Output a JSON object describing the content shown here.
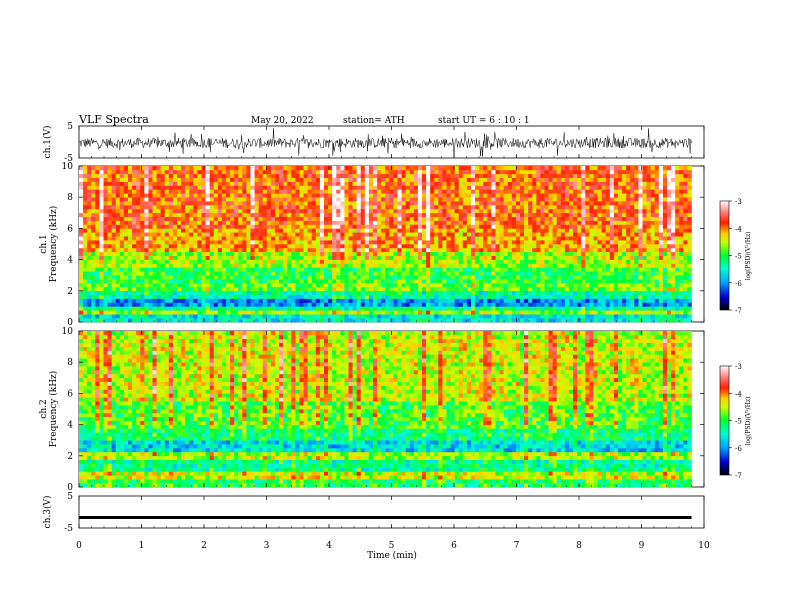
{
  "header": {
    "title": "VLF  Spectra",
    "date": "May 20, 2022",
    "station": "station= ATH",
    "start": "start  UT  =   6  : 10 : 1"
  },
  "chart_data": [
    {
      "type": "line",
      "panel": "ch1-waveform",
      "ylabel": "ch.1(V)",
      "y_ticks": [
        "5",
        "-5"
      ],
      "ylim": [
        -5,
        5
      ],
      "x_range": [
        0,
        10
      ],
      "data_extent_min": 9.8,
      "description_level": -0.3,
      "series_color": "#000000"
    },
    {
      "type": "heatmap",
      "panel": "ch1-spectrogram",
      "ylabel_top": "ch.1",
      "ylabel": "Frequency  (kHz)",
      "y_ticks": [
        "0",
        "2",
        "4",
        "6",
        "8",
        "10"
      ],
      "ylim": [
        0,
        10
      ],
      "x_range": [
        0,
        9.8
      ],
      "colorbar": {
        "label": "log(PSD)(V²/Hz)",
        "ticks": [
          "-3",
          "-4",
          "-5",
          "-6",
          "-7"
        ],
        "range": [
          -7,
          -3
        ]
      },
      "bands": [
        {
          "f": [
            0,
            0.4
          ],
          "level": -5.6
        },
        {
          "f": [
            0.4,
            0.8
          ],
          "level": -4.6
        },
        {
          "f": [
            0.8,
            1.0
          ],
          "level": -5.3
        },
        {
          "f": [
            1.0,
            1.6
          ],
          "level": -6.0
        },
        {
          "f": [
            1.6,
            2.0
          ],
          "level": -5.4
        },
        {
          "f": [
            2.0,
            2.4
          ],
          "level": -4.8
        },
        {
          "f": [
            2.4,
            3.6
          ],
          "level": -5.0
        },
        {
          "f": [
            3.6,
            4.4
          ],
          "level": -4.6
        },
        {
          "f": [
            4.4,
            6.0
          ],
          "level": -4.1
        },
        {
          "f": [
            6.0,
            10.0
          ],
          "level": -3.9
        }
      ]
    },
    {
      "type": "heatmap",
      "panel": "ch2-spectrogram",
      "ylabel_top": "ch.2",
      "ylabel": "Frequency  (kHz)",
      "y_ticks": [
        "0",
        "2",
        "4",
        "6",
        "8",
        "10"
      ],
      "ylim": [
        0,
        10
      ],
      "x_range": [
        0,
        9.8
      ],
      "colorbar": {
        "label": "log(PSD)(V²/Hz)",
        "ticks": [
          "-3",
          "-4",
          "-5",
          "-6",
          "-7"
        ],
        "range": [
          -7,
          -3
        ]
      },
      "bands": [
        {
          "f": [
            0,
            0.4
          ],
          "level": -5.1
        },
        {
          "f": [
            0.4,
            0.9
          ],
          "level": -4.5
        },
        {
          "f": [
            0.9,
            1.8
          ],
          "level": -5.3
        },
        {
          "f": [
            1.8,
            2.2
          ],
          "level": -4.6
        },
        {
          "f": [
            2.2,
            3.0
          ],
          "level": -5.7
        },
        {
          "f": [
            3.0,
            3.8
          ],
          "level": -5.2
        },
        {
          "f": [
            3.8,
            5.5
          ],
          "level": -4.9
        },
        {
          "f": [
            5.5,
            10.0
          ],
          "level": -4.5
        }
      ]
    },
    {
      "type": "line",
      "panel": "ch3-waveform",
      "ylabel": "ch.3(V)",
      "y_ticks": [
        "5",
        "-5"
      ],
      "ylim": [
        -5,
        5
      ],
      "x_range": [
        0,
        10
      ],
      "value": -1.7,
      "series_color": "#000000"
    }
  ],
  "x_axis": {
    "label": "Time  (min)",
    "ticks": [
      "0",
      "1",
      "2",
      "3",
      "4",
      "5",
      "6",
      "7",
      "8",
      "9",
      "10"
    ],
    "range": [
      0,
      10
    ]
  }
}
